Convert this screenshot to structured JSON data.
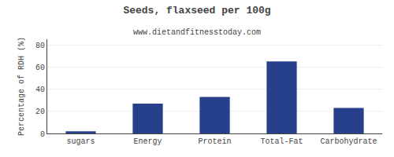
{
  "chart_data": {
    "type": "bar",
    "title": "Seeds, flaxseed per 100g",
    "subtitle": "www.dietandfitnesstoday.com",
    "categories": [
      "sugars",
      "Energy",
      "Protein",
      "Total-Fat",
      "Carbohydrate"
    ],
    "values": [
      2,
      27,
      33,
      65,
      23
    ],
    "color": "#27408B",
    "ylabel": "Percentage of RDH (%)",
    "ylim": [
      0,
      85
    ],
    "yticks": [
      0,
      20,
      40,
      60,
      80
    ],
    "grid": true
  }
}
